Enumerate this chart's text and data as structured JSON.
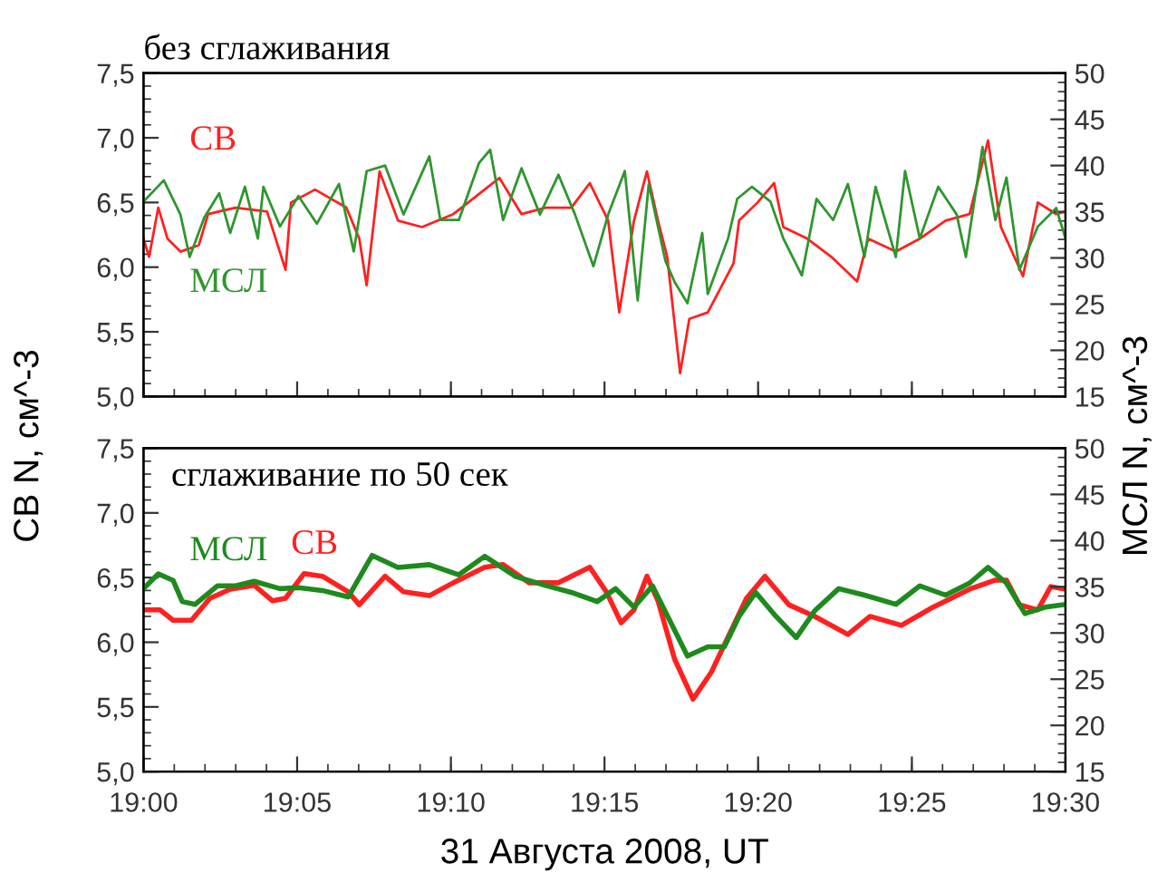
{
  "chart_data": [
    {
      "type": "line",
      "title": "без сглаживания",
      "ylabel": "СВ N, см^-3",
      "y2label": "МСЛ N, см^-3",
      "tick_labels": "y",
      "grid": false,
      "legend": false,
      "xlim": [
        19.0,
        19.5
      ],
      "xticks": [
        {
          "value": 19.0,
          "label": null
        },
        {
          "value": 19.0833,
          "label": null
        },
        {
          "value": 19.1667,
          "label": null
        },
        {
          "value": 19.25,
          "label": null
        },
        {
          "value": 19.3333,
          "label": null
        },
        {
          "value": 19.4167,
          "label": null
        },
        {
          "value": 19.5,
          "label": null
        }
      ],
      "ylim": [
        5.0,
        7.5
      ],
      "yticks": [
        {
          "value": 5.0,
          "label": "5,0"
        },
        {
          "value": 5.5,
          "label": "5,5"
        },
        {
          "value": 6.0,
          "label": "6,0"
        },
        {
          "value": 6.5,
          "label": "6,5"
        },
        {
          "value": 7.0,
          "label": "7,0"
        },
        {
          "value": 7.5,
          "label": "7,5"
        }
      ],
      "y2lim": [
        15,
        50
      ],
      "y2ticks": [
        15,
        20,
        25,
        30,
        35,
        40,
        45,
        50
      ],
      "series": [
        {
          "name": "СВ",
          "color": "#ff2020",
          "x": [
            19.0,
            19.003,
            19.008,
            19.013,
            19.02,
            19.03,
            19.035,
            19.05,
            19.067,
            19.077,
            19.08,
            19.093,
            19.11,
            19.117,
            19.121,
            19.128,
            19.138,
            19.151,
            19.168,
            19.185,
            19.193,
            19.205,
            19.218,
            19.232,
            19.242,
            19.252,
            19.258,
            19.266,
            19.273,
            19.279,
            19.284,
            19.291,
            19.296,
            19.306,
            19.313,
            19.32,
            19.323,
            19.333,
            19.342,
            19.347,
            19.36,
            19.373,
            19.387,
            19.393,
            19.408,
            19.421,
            19.435,
            19.448,
            19.458,
            19.465,
            19.477,
            19.485,
            19.495,
            19.5
          ],
          "values": [
            6.22,
            6.08,
            6.46,
            6.22,
            6.12,
            6.17,
            6.41,
            6.46,
            6.43,
            5.98,
            6.5,
            6.6,
            6.46,
            6.22,
            5.86,
            6.74,
            6.36,
            6.31,
            6.41,
            6.6,
            6.69,
            6.41,
            6.46,
            6.46,
            6.65,
            6.36,
            5.65,
            6.36,
            6.74,
            6.36,
            6.08,
            5.18,
            5.6,
            5.65,
            5.84,
            6.03,
            6.36,
            6.5,
            6.65,
            6.31,
            6.22,
            6.08,
            5.89,
            6.22,
            6.12,
            6.22,
            6.36,
            6.41,
            6.98,
            6.31,
            5.93,
            6.5,
            6.41,
            6.43
          ]
        },
        {
          "name": "МСЛ",
          "color": "#2e962e",
          "axis": "y2",
          "x": [
            19.0,
            19.011,
            19.02,
            19.025,
            19.033,
            19.041,
            19.047,
            19.055,
            19.062,
            19.065,
            19.074,
            19.084,
            19.094,
            19.106,
            19.114,
            19.121,
            19.131,
            19.141,
            19.155,
            19.161,
            19.171,
            19.182,
            19.188,
            19.195,
            19.205,
            19.215,
            19.225,
            19.234,
            19.244,
            19.252,
            19.261,
            19.268,
            19.274,
            19.283,
            19.288,
            19.295,
            19.303,
            19.306,
            19.317,
            19.322,
            19.33,
            19.34,
            19.347,
            19.357,
            19.365,
            19.374,
            19.382,
            19.391,
            19.397,
            19.408,
            19.413,
            19.421,
            19.431,
            19.441,
            19.446,
            19.455,
            19.462,
            19.468,
            19.475,
            19.485,
            19.495,
            19.5
          ],
          "values": [
            36.1,
            38.4,
            34.7,
            30.1,
            34.4,
            37.0,
            32.7,
            37.7,
            32.1,
            37.7,
            33.4,
            36.7,
            33.7,
            38.0,
            30.7,
            39.4,
            40.0,
            34.7,
            41.0,
            34.1,
            34.1,
            40.3,
            41.7,
            34.1,
            39.7,
            34.7,
            39.0,
            34.7,
            29.1,
            34.7,
            39.4,
            25.4,
            38.0,
            29.7,
            27.4,
            25.1,
            32.7,
            26.1,
            32.1,
            36.4,
            37.7,
            36.1,
            32.1,
            28.1,
            36.4,
            34.1,
            38.0,
            30.1,
            37.7,
            30.1,
            39.4,
            32.1,
            37.7,
            34.7,
            30.1,
            42.0,
            34.1,
            38.7,
            28.7,
            33.4,
            35.4,
            32.1
          ]
        }
      ]
    },
    {
      "type": "line",
      "title": "сглаживание по 50 сек",
      "xlabel": "31 Августа 2008, UT",
      "grid": false,
      "legend": false,
      "xlim": [
        19.0,
        19.5
      ],
      "xticks": [
        {
          "value": 19.0,
          "label": "19:00"
        },
        {
          "value": 19.0833,
          "label": "19:05"
        },
        {
          "value": 19.1667,
          "label": "19:10"
        },
        {
          "value": 19.25,
          "label": "19:15"
        },
        {
          "value": 19.3333,
          "label": "19:20"
        },
        {
          "value": 19.4167,
          "label": "19:25"
        },
        {
          "value": 19.5,
          "label": "19:30"
        }
      ],
      "ylim": [
        5.0,
        7.5
      ],
      "yticks": [
        {
          "value": 5.0,
          "label": "5,0"
        },
        {
          "value": 5.5,
          "label": "5,5"
        },
        {
          "value": 6.0,
          "label": "6,0"
        },
        {
          "value": 6.5,
          "label": "6,5"
        },
        {
          "value": 7.0,
          "label": "7,0"
        },
        {
          "value": 7.5,
          "label": "7,5"
        }
      ],
      "y2lim": [
        15,
        50
      ],
      "y2ticks": [
        15,
        20,
        25,
        30,
        35,
        40,
        45,
        50
      ],
      "series": [
        {
          "name": "МСЛ",
          "color": "#1e8a1e",
          "axis": "y2",
          "x": [
            19.0,
            19.008,
            19.016,
            19.021,
            19.028,
            19.04,
            19.05,
            19.06,
            19.074,
            19.084,
            19.097,
            19.111,
            19.124,
            19.138,
            19.155,
            19.171,
            19.185,
            19.202,
            19.219,
            19.232,
            19.246,
            19.256,
            19.266,
            19.276,
            19.286,
            19.295,
            19.306,
            19.315,
            19.323,
            19.332,
            19.343,
            19.354,
            19.364,
            19.377,
            19.391,
            19.408,
            19.421,
            19.435,
            19.448,
            19.458,
            19.468,
            19.478,
            19.489,
            19.5
          ],
          "values": [
            34.8,
            36.4,
            35.7,
            33.4,
            33.1,
            35.1,
            35.1,
            35.6,
            34.8,
            34.9,
            34.6,
            33.9,
            38.4,
            37.1,
            37.4,
            36.3,
            38.3,
            36.1,
            35.1,
            34.4,
            33.4,
            34.8,
            32.8,
            35.1,
            31.1,
            27.5,
            28.5,
            28.5,
            31.8,
            34.4,
            31.8,
            29.5,
            32.4,
            34.8,
            34.1,
            33.1,
            35.1,
            34.1,
            35.4,
            37.1,
            35.4,
            32.1,
            32.8,
            33.1
          ]
        },
        {
          "name": "СВ",
          "color": "#ff2020",
          "x": [
            19.0,
            19.009,
            19.016,
            19.026,
            19.036,
            19.047,
            19.06,
            19.07,
            19.077,
            19.087,
            19.097,
            19.111,
            19.117,
            19.131,
            19.141,
            19.155,
            19.168,
            19.185,
            19.195,
            19.209,
            19.225,
            19.242,
            19.251,
            19.259,
            19.266,
            19.273,
            19.279,
            19.288,
            19.298,
            19.308,
            19.32,
            19.327,
            19.337,
            19.35,
            19.364,
            19.382,
            19.394,
            19.411,
            19.428,
            19.448,
            19.462,
            19.468,
            19.475,
            19.485,
            19.492,
            19.5
          ],
          "values": [
            6.25,
            6.25,
            6.17,
            6.17,
            6.34,
            6.41,
            6.44,
            6.32,
            6.34,
            6.53,
            6.51,
            6.39,
            6.29,
            6.51,
            6.39,
            6.36,
            6.46,
            6.58,
            6.6,
            6.46,
            6.46,
            6.58,
            6.39,
            6.15,
            6.25,
            6.51,
            6.32,
            5.87,
            5.56,
            5.77,
            6.13,
            6.34,
            6.51,
            6.29,
            6.2,
            6.06,
            6.2,
            6.13,
            6.27,
            6.41,
            6.48,
            6.48,
            6.29,
            6.25,
            6.43,
            6.41
          ]
        }
      ]
    }
  ]
}
